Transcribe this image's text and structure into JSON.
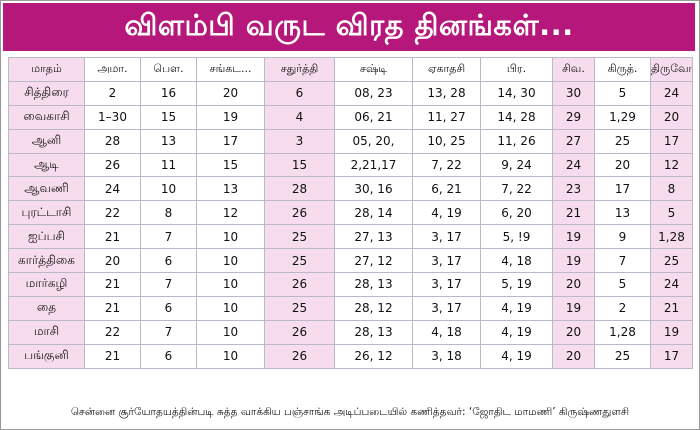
{
  "banner": {
    "title": "விளம்பி வருட விரத தினங்கள்..."
  },
  "table": {
    "headers": [
      "மாதம்",
      "அமா.",
      "பௌ.",
      "சங்கட...",
      "சதுர்த்தி",
      "சஷ்டி",
      "ஏகாதசி",
      "பிர.",
      "சிவ.",
      "கிருத்.",
      "திருவோ."
    ],
    "rows": [
      [
        "சித்திரை",
        "2",
        "16",
        "20",
        "6",
        "08, 23",
        "13, 28",
        "14, 30",
        "30",
        "5",
        "24"
      ],
      [
        "வைகாசி",
        "1–30",
        "15",
        "19",
        "4",
        "06, 21",
        "11, 27",
        "14, 28",
        "29",
        "1,29",
        "20"
      ],
      [
        "ஆனி",
        "28",
        "13",
        "17",
        "3",
        "05, 20,",
        "10, 25",
        "11, 26",
        "27",
        "25",
        "17"
      ],
      [
        "ஆடி",
        "26",
        "11",
        "15",
        "15",
        "2,21,17",
        "7, 22",
        "9, 24",
        "24",
        "20",
        "12"
      ],
      [
        "ஆவணி",
        "24",
        "10",
        "13",
        "28",
        "30, 16",
        "6, 21",
        "7, 22",
        "23",
        "17",
        "8"
      ],
      [
        "புரட்டாசி",
        "22",
        "8",
        "12",
        "26",
        "28, 14",
        "4, 19",
        "6, 20",
        "21",
        "13",
        "5"
      ],
      [
        "ஐப்பசி",
        "21",
        "7",
        "10",
        "25",
        "27, 13",
        "3, 17",
        "5, !9",
        "19",
        "9",
        "1,28"
      ],
      [
        "கார்த்திகை",
        "20",
        "6",
        "10",
        "25",
        "27, 12",
        "3, 17",
        "4, 18",
        "19",
        "7",
        "25"
      ],
      [
        "மார்கழி",
        "21",
        "7",
        "10",
        "26",
        "28, 13",
        "3, 17",
        "5, 19",
        "20",
        "5",
        "24"
      ],
      [
        "தை",
        "21",
        "6",
        "10",
        "25",
        "28, 12",
        "3, 17",
        "4, 19",
        "19",
        "2",
        "21"
      ],
      [
        "மாசி",
        "22",
        "7",
        "10",
        "26",
        "28, 13",
        "4, 18",
        "4, 19",
        "20",
        "1,28",
        "19"
      ],
      [
        "பங்குனி",
        "21",
        "6",
        "10",
        "26",
        "26, 12",
        "3, 18",
        "4, 19",
        "20",
        "25",
        "17"
      ]
    ]
  },
  "footer": {
    "text": "சென்னை சூர்யோதயத்தின்படி சுத்த வாக்கிய பஞ்சாங்க அடிப்படையில் கணித்தவர்: ‘ஜோதிட மாமணி’ கிருஷ்ணதுளசி"
  },
  "colors": {
    "banner_bg": "#b5177a",
    "shade": "#f6dcec",
    "grid_line": "#b9b9c9"
  }
}
